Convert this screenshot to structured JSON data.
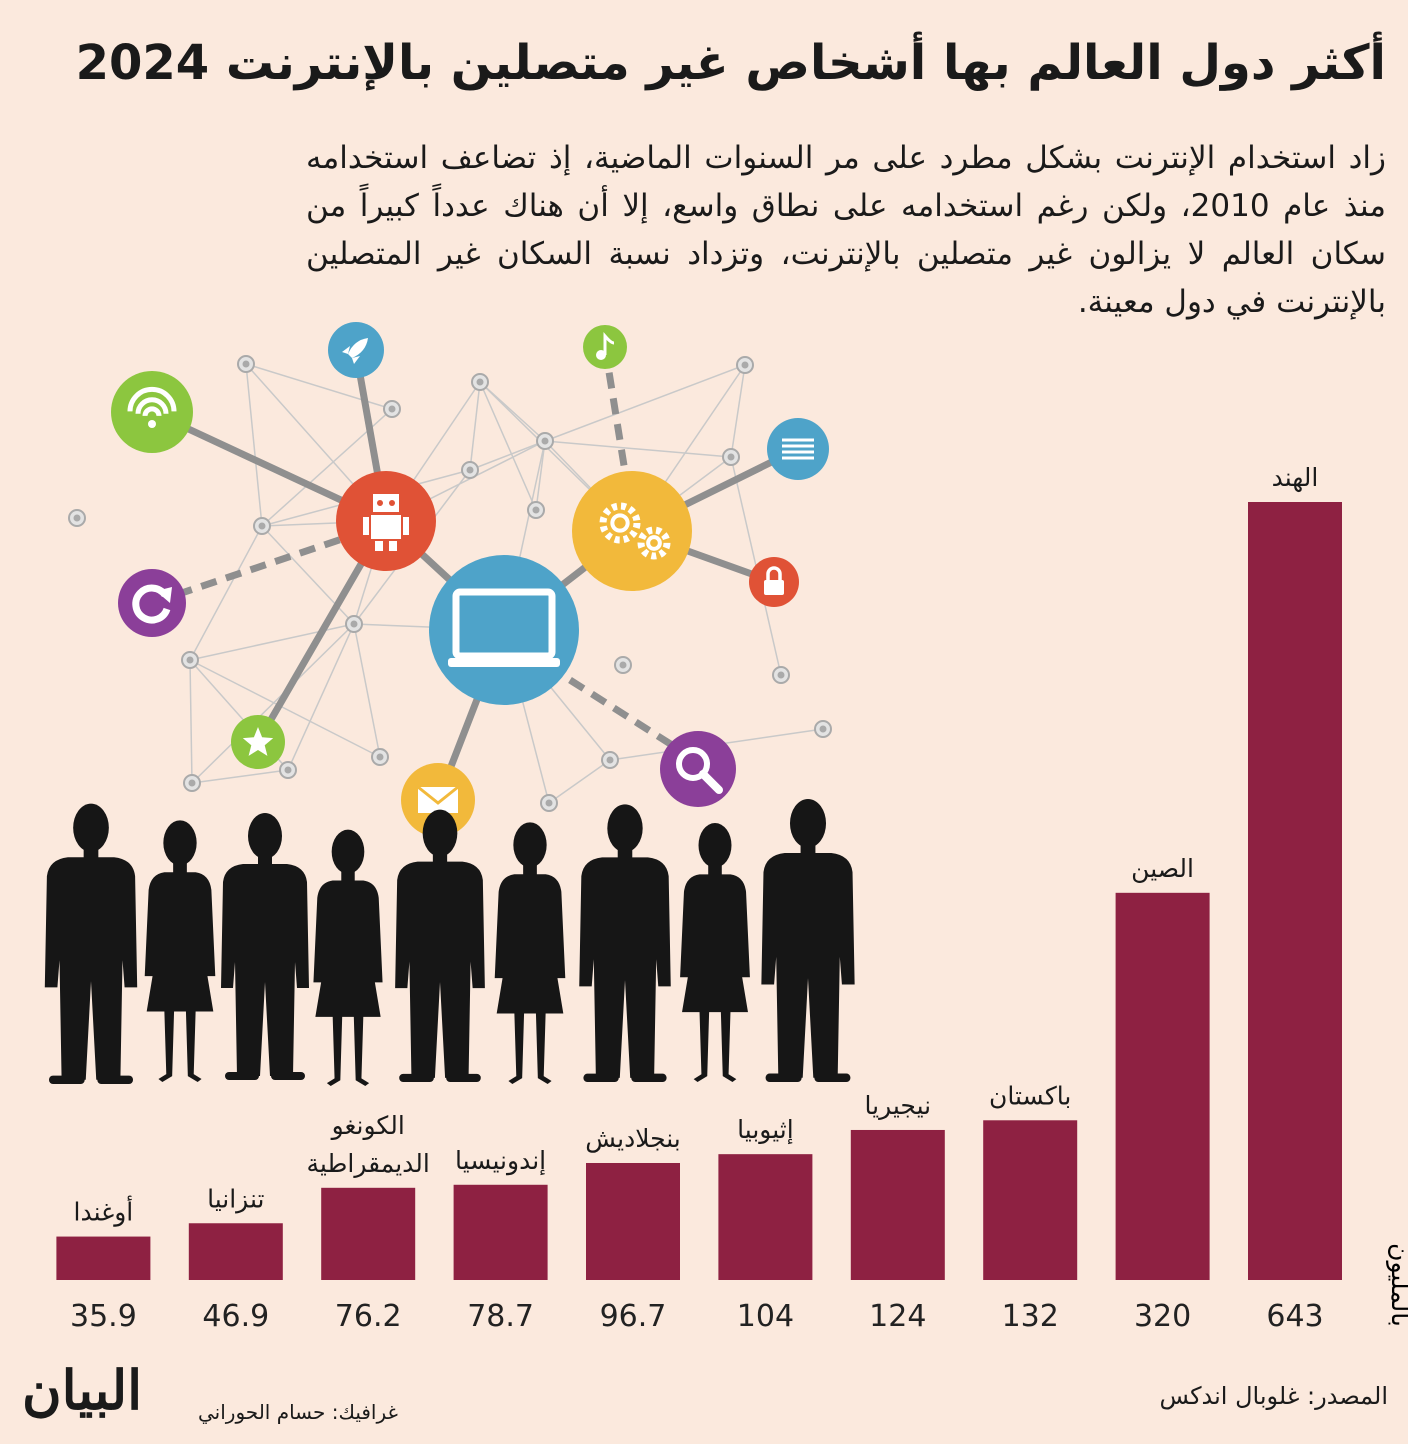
{
  "title": "أكثر دول العالم بها أشخاص غير متصلين بالإنترنت 2024",
  "intro": "زاد استخدام الإنترنت بشكل مطرد على مر السنوات الماضية، إذ تضاعف استخدامه منذ عام 2010، ولكن رغم استخدامه على نطاق واسع، إلا أن هناك عدداً كبيراً من سكان العالم لا يزالون غير متصلين بالإنترنت، وتزداد نسبة السكان غير المتصلين بالإنترنت في دول معينة.",
  "source": "المصدر: غلوبال اندكس",
  "credit": "غرافيك: حسام الحوراني",
  "logo": "البيان",
  "colors": {
    "bar": "#8e2142",
    "background": "#fbe9dd",
    "text": "#1a1a1a"
  },
  "illustration": {
    "icons": [
      "wifi-icon",
      "rocket-icon",
      "music-note-icon",
      "document-icon",
      "robot-icon",
      "gears-icon",
      "laptop-icon",
      "lock-icon",
      "refresh-icon",
      "star-icon",
      "envelope-icon",
      "search-icon"
    ],
    "people_silhouettes": 9
  },
  "chart_data": {
    "type": "bar",
    "unit_label": "بالمليون",
    "categories": [
      [
        "الهند"
      ],
      [
        "الصين"
      ],
      [
        "باكستان"
      ],
      [
        "نيجيريا"
      ],
      [
        "إثيوبيا"
      ],
      [
        "بنجلاديش"
      ],
      [
        "إندونيسيا"
      ],
      [
        "الكونغو",
        "الديمقراطية"
      ],
      [
        "تنزانيا"
      ],
      [
        "أوغندا"
      ]
    ],
    "values": [
      643,
      320,
      132,
      124,
      104,
      96.7,
      78.7,
      76.2,
      46.9,
      35.9
    ],
    "value_labels": [
      "643",
      "320",
      "132",
      "124",
      "104",
      "96.7",
      "78.7",
      "76.2",
      "46.9",
      "35.9"
    ],
    "ylim": [
      0,
      643
    ],
    "grid": false,
    "legend": "none"
  }
}
